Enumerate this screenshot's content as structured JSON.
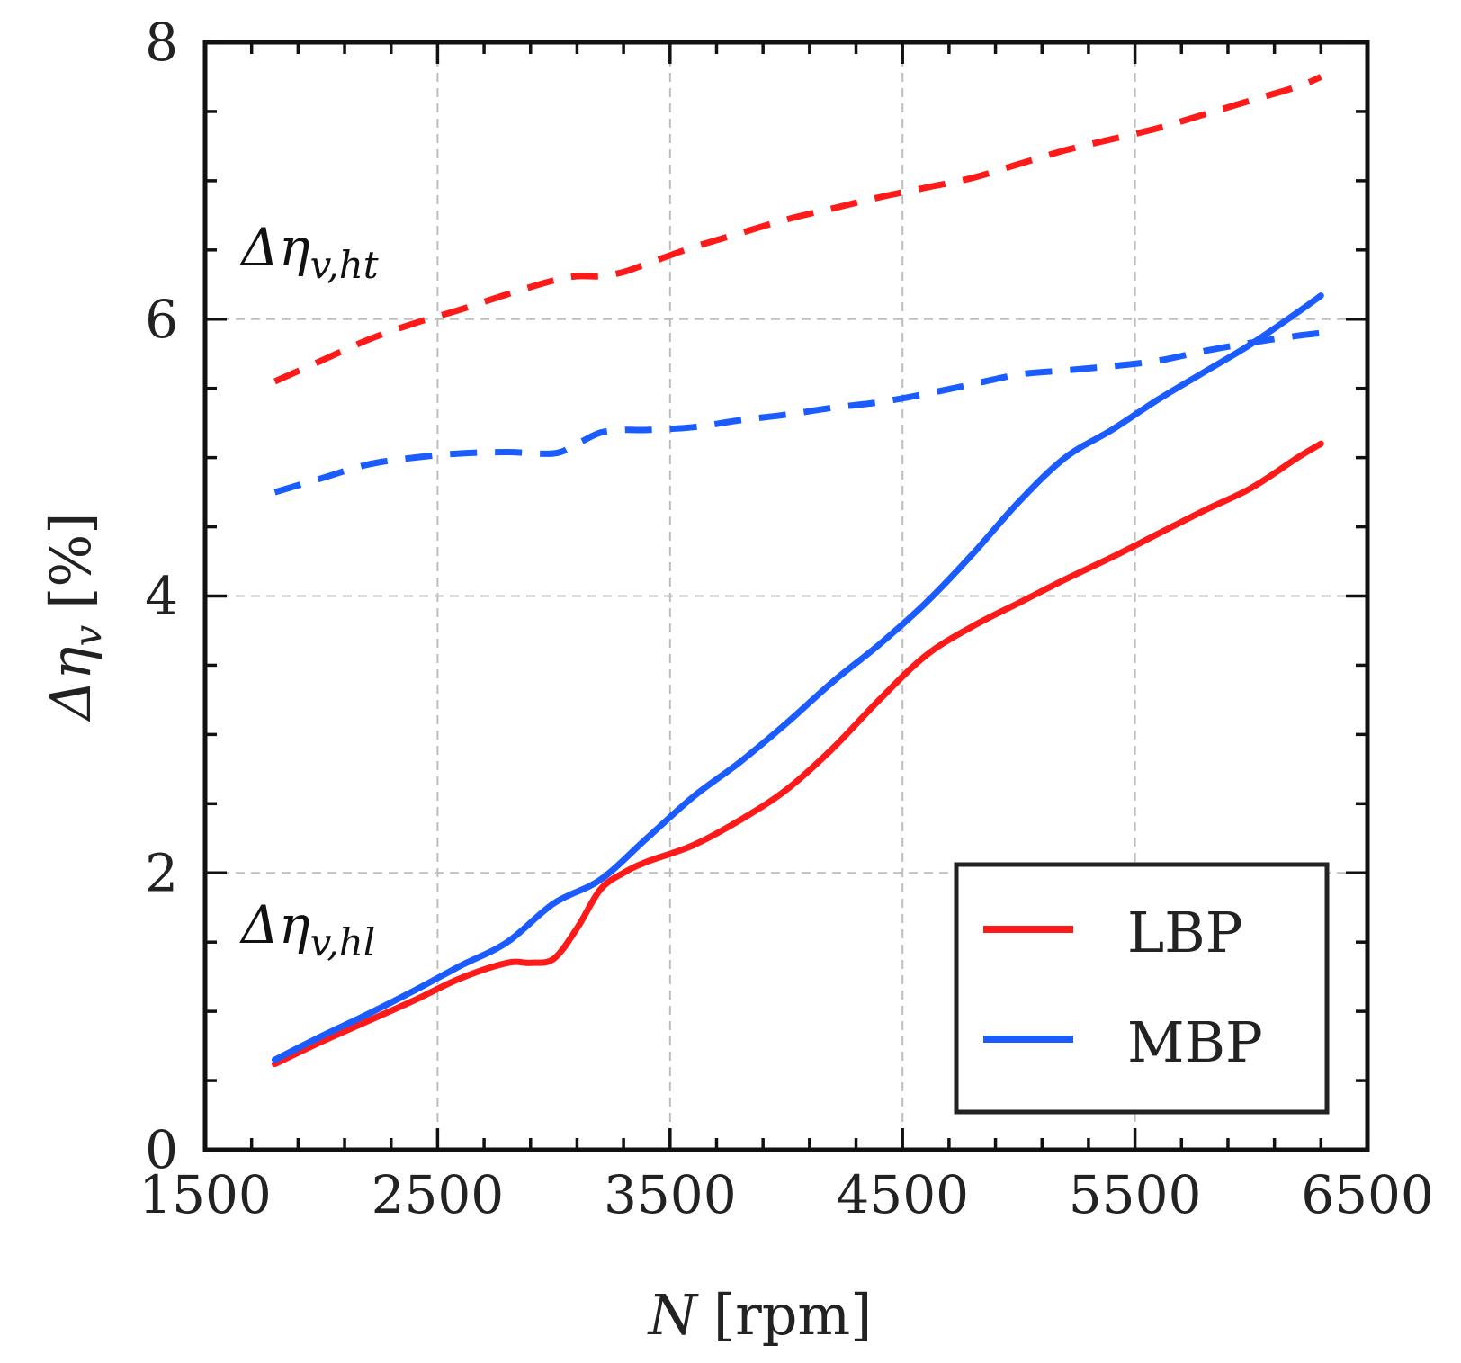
{
  "chart_data": {
    "type": "line",
    "title": "",
    "xlabel_var": "N",
    "xlabel_unit": "[rpm]",
    "ylabel_base": "Δη",
    "ylabel_sub": "v",
    "ylabel_unit": "[%]",
    "xlim": [
      1500,
      6500
    ],
    "ylim": [
      0,
      8
    ],
    "xticks": [
      1500,
      2500,
      3500,
      4500,
      5500,
      6500
    ],
    "yticks": [
      0,
      2,
      4,
      6,
      8
    ],
    "x_minor_step": 200,
    "y_minor_step": 0.5,
    "grid": true,
    "legend": {
      "position": "bottom-right",
      "entries": [
        {
          "label": "LBP",
          "color": "#ff1a1a"
        },
        {
          "label": "MBP",
          "color": "#1a5cff"
        }
      ]
    },
    "annotations": [
      {
        "id": "ht",
        "base": "Δη",
        "sub": "v,ht",
        "x": 1650,
        "y": 6.4
      },
      {
        "id": "hl",
        "base": "Δη",
        "sub": "v,hl",
        "x": 1650,
        "y": 1.45
      }
    ],
    "series": [
      {
        "name": "LBP Δη_v,ht",
        "group": "LBP",
        "style": "dashed",
        "color": "#ff1a1a",
        "x": [
          1800,
          2000,
          2200,
          2400,
          2600,
          2800,
          3000,
          3100,
          3200,
          3300,
          3400,
          3600,
          3800,
          4000,
          4200,
          4400,
          4600,
          4800,
          5000,
          5200,
          5400,
          5600,
          5800,
          6000,
          6200,
          6300
        ],
        "y": [
          5.55,
          5.7,
          5.85,
          5.97,
          6.07,
          6.18,
          6.28,
          6.31,
          6.31,
          6.34,
          6.4,
          6.52,
          6.62,
          6.72,
          6.8,
          6.88,
          6.95,
          7.02,
          7.12,
          7.22,
          7.3,
          7.38,
          7.48,
          7.58,
          7.68,
          7.75
        ]
      },
      {
        "name": "MBP Δη_v,ht",
        "group": "MBP",
        "style": "dashed",
        "color": "#1a5cff",
        "x": [
          1800,
          2000,
          2200,
          2400,
          2600,
          2800,
          3000,
          3100,
          3200,
          3300,
          3400,
          3600,
          3800,
          4000,
          4200,
          4400,
          4600,
          4800,
          5000,
          5200,
          5400,
          5600,
          5800,
          6000,
          6200,
          6300
        ],
        "y": [
          4.75,
          4.85,
          4.95,
          5.0,
          5.03,
          5.04,
          5.03,
          5.1,
          5.18,
          5.2,
          5.2,
          5.22,
          5.27,
          5.31,
          5.36,
          5.4,
          5.46,
          5.53,
          5.6,
          5.63,
          5.66,
          5.7,
          5.77,
          5.83,
          5.88,
          5.9
        ]
      },
      {
        "name": "LBP Δη_v,hl",
        "group": "LBP",
        "style": "solid",
        "color": "#ff1a1a",
        "x": [
          1800,
          2000,
          2200,
          2400,
          2600,
          2800,
          2900,
          3000,
          3100,
          3200,
          3300,
          3400,
          3600,
          3800,
          4000,
          4200,
          4400,
          4600,
          4800,
          5000,
          5200,
          5400,
          5600,
          5800,
          6000,
          6200,
          6300
        ],
        "y": [
          0.62,
          0.78,
          0.93,
          1.08,
          1.24,
          1.35,
          1.35,
          1.38,
          1.6,
          1.88,
          2.0,
          2.08,
          2.2,
          2.38,
          2.6,
          2.9,
          3.25,
          3.57,
          3.78,
          3.95,
          4.12,
          4.28,
          4.45,
          4.62,
          4.78,
          5.0,
          5.1
        ]
      },
      {
        "name": "MBP Δη_v,hl",
        "group": "MBP",
        "style": "solid",
        "color": "#1a5cff",
        "x": [
          1800,
          2000,
          2200,
          2400,
          2600,
          2800,
          3000,
          3200,
          3400,
          3600,
          3800,
          4000,
          4200,
          4400,
          4600,
          4800,
          5000,
          5200,
          5400,
          5600,
          5800,
          6000,
          6200,
          6300
        ],
        "y": [
          0.65,
          0.82,
          0.98,
          1.15,
          1.33,
          1.5,
          1.78,
          1.95,
          2.25,
          2.55,
          2.8,
          3.08,
          3.38,
          3.65,
          3.95,
          4.3,
          4.68,
          5.0,
          5.2,
          5.42,
          5.62,
          5.82,
          6.05,
          6.17
        ]
      }
    ]
  }
}
